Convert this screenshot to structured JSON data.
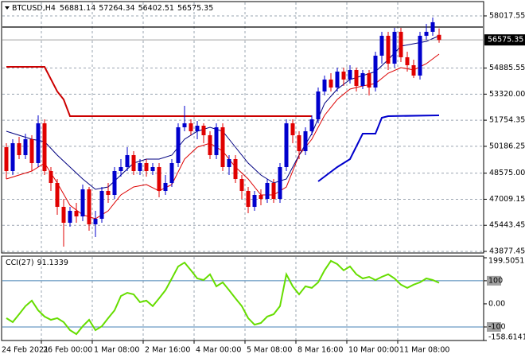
{
  "chart_data": [
    {
      "type": "candlestick",
      "title": "BTCUSD,H4",
      "categories": [
        "24 Feb 2021",
        null,
        null,
        null,
        null,
        null,
        null,
        "26 Feb 00:00",
        null,
        null,
        null,
        null,
        null,
        null,
        null,
        "1 Mar 08:00",
        null,
        null,
        null,
        null,
        null,
        null,
        null,
        "2 Mar 16:00",
        null,
        null,
        null,
        null,
        null,
        null,
        null,
        "4 Mar 00:00",
        null,
        null,
        null,
        null,
        null,
        null,
        null,
        "5 Mar 08:00",
        null,
        null,
        null,
        null,
        null,
        null,
        null,
        "8 Mar 16:00",
        null,
        null,
        null,
        null,
        null,
        null,
        null,
        "10 Mar 00:00",
        null,
        null,
        null,
        null,
        null,
        null,
        null,
        "11 Mar 08:00",
        null,
        null,
        null,
        null,
        null
      ],
      "open": [
        50135,
        48702,
        50374,
        49658,
        50613,
        49180,
        51569,
        48702,
        47986,
        46552,
        45597,
        46314,
        45979,
        47604,
        45502,
        45836,
        47508,
        47269,
        48702,
        48941,
        49658,
        48702,
        49180,
        48702,
        48941,
        47508,
        47986,
        49180,
        51330,
        51569,
        51091,
        51425,
        50852,
        49658,
        51330,
        48941,
        49419,
        48224,
        47508,
        46552,
        47269,
        47030,
        47986,
        47030,
        48941,
        51569,
        50852,
        49897,
        51091,
        51807,
        53479,
        54196,
        53718,
        54674,
        54196,
        54769,
        53814,
        54578,
        53718,
        55629,
        56824,
        55151,
        57062,
        55534,
        55056,
        54435,
        56824,
        57062,
        56881.14
      ],
      "high": [
        50374,
        50613,
        50757,
        50948,
        50852,
        52046,
        51807,
        48941,
        48224,
        47030,
        46552,
        46791,
        47890,
        47747,
        46314,
        47747,
        47986,
        48941,
        49419,
        50135,
        49897,
        49419,
        49419,
        49180,
        49180,
        48463,
        49419,
        51569,
        52620,
        51807,
        51712,
        51569,
        51091,
        51569,
        51569,
        49658,
        49658,
        48463,
        47747,
        47508,
        47604,
        48224,
        48224,
        49180,
        51807,
        51807,
        51091,
        51330,
        52046,
        53718,
        54435,
        54578,
        54913,
        54913,
        55056,
        54913,
        54769,
        54769,
        55868,
        57062,
        57062,
        57301,
        57301,
        55868,
        55390,
        57062,
        57540,
        57922,
        57264.34
      ],
      "low": [
        48224,
        48463,
        49419,
        49419,
        48702,
        48941,
        48463,
        47508,
        46075,
        44164,
        45358,
        45597,
        45693,
        45119,
        44737,
        45597,
        46791,
        47030,
        48368,
        48702,
        48463,
        48463,
        48368,
        48463,
        47126,
        47269,
        47747,
        48941,
        51091,
        50852,
        50613,
        50374,
        49419,
        49419,
        48702,
        48463,
        47986,
        47030,
        46170,
        46314,
        46648,
        46791,
        46791,
        46791,
        48702,
        50374,
        49419,
        49658,
        50852,
        51569,
        53241,
        53479,
        53479,
        53814,
        53957,
        53479,
        53623,
        53241,
        53479,
        55151,
        54769,
        54913,
        55247,
        54674,
        54291,
        54196,
        56585,
        56824,
        56402.51
      ],
      "close": [
        48702,
        50374,
        49658,
        50613,
        49180,
        51569,
        48702,
        47986,
        46552,
        45597,
        46314,
        45979,
        47604,
        45502,
        45836,
        47508,
        47269,
        48702,
        48941,
        49658,
        48702,
        49180,
        48702,
        48941,
        47508,
        47986,
        49180,
        51330,
        51569,
        51091,
        51425,
        50852,
        49658,
        51330,
        48941,
        49419,
        48224,
        47508,
        46552,
        47269,
        47030,
        47986,
        47030,
        48941,
        51569,
        50852,
        49897,
        51091,
        51807,
        53479,
        54196,
        53718,
        54674,
        54196,
        54769,
        53814,
        54578,
        53718,
        55629,
        56824,
        55151,
        57062,
        55534,
        55056,
        54435,
        56824,
        57062,
        57636,
        56575.35
      ],
      "up_color": "#0000cd",
      "down_color": "#e00000",
      "ylim": [
        43782,
        58590
      ],
      "yticks": [
        58017.55,
        54885.55,
        {
          "value": 53320,
          "label": "53320.00"
        },
        51754.35,
        50186.25,
        {
          "value": 48575,
          "label": "48575.00"
        },
        47009.15,
        45443.45,
        43877.45
      ],
      "overlays": [
        {
          "color": "#cc0000",
          "width": 2,
          "x": [
            0,
            6,
            8,
            9,
            10,
            48
          ],
          "values": [
            54960,
            54960,
            53479,
            53002,
            51998,
            51998
          ]
        },
        {
          "color": "#0000cc",
          "width": 2,
          "x": [
            49,
            52,
            54,
            56,
            58,
            59,
            60,
            68
          ],
          "values": [
            48081,
            48941,
            49419,
            50948,
            50948,
            51903,
            51998,
            52046
          ]
        },
        {
          "color": "#dd0000",
          "width": 1,
          "x": [
            0,
            4,
            6,
            8,
            10,
            12,
            14,
            16,
            18,
            20,
            22,
            24,
            26,
            28,
            30,
            32,
            34,
            36,
            38,
            40,
            42,
            44,
            46,
            48,
            50,
            52,
            54,
            56,
            58,
            60,
            62,
            64,
            66,
            68
          ],
          "values": [
            48224,
            48702,
            49180,
            47986,
            46648,
            46075,
            45836,
            46314,
            47269,
            47747,
            47890,
            47508,
            47890,
            49419,
            50135,
            50374,
            49897,
            48941,
            48224,
            47269,
            47269,
            47747,
            49658,
            50613,
            52046,
            53002,
            53623,
            53814,
            53957,
            54578,
            54913,
            54769,
            55151,
            55725
          ]
        },
        {
          "color": "#000080",
          "width": 1,
          "x": [
            0,
            2,
            4,
            6,
            8,
            10,
            12,
            14,
            16,
            18,
            20,
            22,
            24,
            26,
            28,
            30,
            32,
            34,
            36,
            38,
            40,
            42,
            44,
            46,
            48,
            50,
            52,
            54,
            56,
            58,
            60,
            62,
            64,
            66,
            68
          ],
          "values": [
            51091,
            50852,
            50613,
            50470,
            49658,
            48941,
            48224,
            47604,
            47747,
            48463,
            49180,
            49419,
            49419,
            49658,
            50613,
            51091,
            51330,
            51091,
            50135,
            49180,
            48463,
            47986,
            48224,
            49658,
            50948,
            52763,
            53623,
            54196,
            54435,
            54674,
            55390,
            56202,
            56346,
            56489,
            56824
          ]
        }
      ],
      "hlines": [
        {
          "value": 57349,
          "color": "#000000"
        }
      ]
    },
    {
      "type": "line",
      "title": "CCI(27)",
      "color": "#66dd00",
      "values": [
        -62,
        -79,
        -45,
        -10,
        14,
        -28,
        -55,
        -69,
        -62,
        -79,
        -114,
        -131,
        -97,
        -69,
        -114,
        -97,
        -62,
        -28,
        34,
        48,
        41,
        7,
        14,
        -10,
        24,
        59,
        110,
        162,
        179,
        145,
        110,
        103,
        128,
        76,
        93,
        59,
        24,
        -10,
        -62,
        -90,
        -83,
        -55,
        -45,
        -10,
        128,
        76,
        41,
        76,
        69,
        93,
        145,
        186,
        172,
        145,
        162,
        128,
        110,
        117,
        103,
        117,
        128,
        110,
        83,
        69,
        83,
        93,
        110,
        103,
        91.1339
      ],
      "ylim": [
        -158.6141,
        199.5051
      ],
      "yticks": [
        199.5051,
        100,
        {
          "value": 0,
          "label": "0.00"
        },
        -100,
        -158.6141
      ],
      "levels": [
        100,
        -100
      ],
      "level_color": "#4682b4"
    }
  ]
}
